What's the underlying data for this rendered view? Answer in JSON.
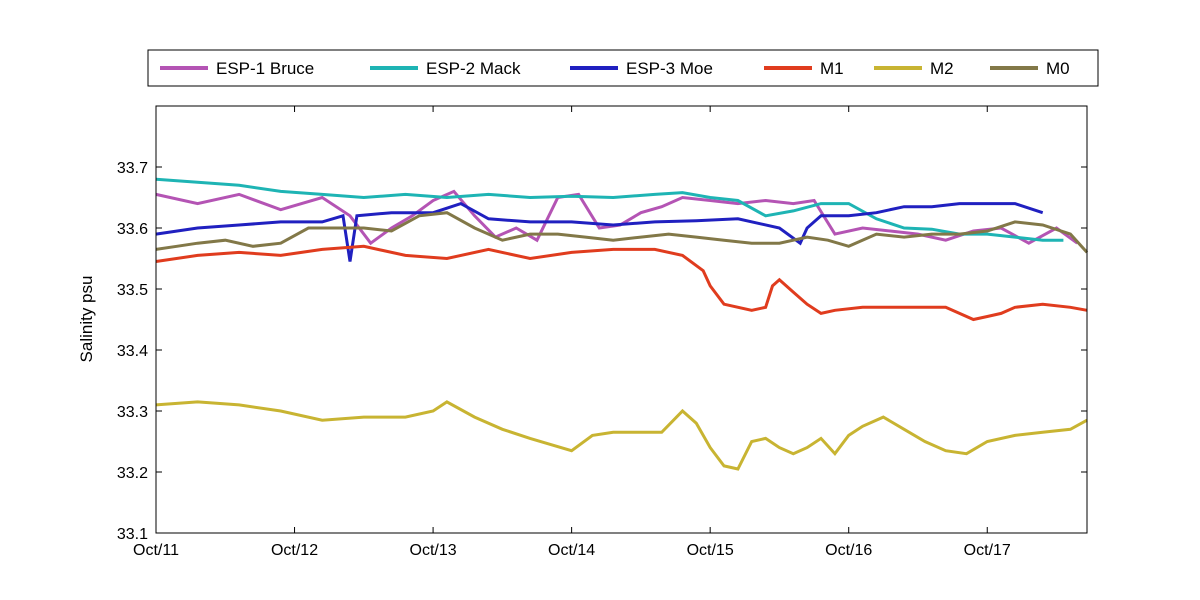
{
  "chart_data": {
    "type": "line",
    "title": "",
    "xlabel": "",
    "ylabel": "Salinity psu",
    "x_tick_labels": [
      "Oct/11",
      "Oct/12",
      "Oct/13",
      "Oct/14",
      "Oct/15",
      "Oct/16",
      "Oct/17"
    ],
    "xlim": [
      11.0,
      17.72
    ],
    "ylim": [
      33.1,
      33.8
    ],
    "y_ticks": [
      "33.1",
      "33.2",
      "33.3",
      "33.4",
      "33.5",
      "33.6",
      "33.7"
    ],
    "grid": false,
    "legend_position": "top",
    "series": [
      {
        "name": "ESP-1 Bruce",
        "color": "#b454b4",
        "x": [
          11.0,
          11.3,
          11.6,
          11.9,
          12.2,
          12.4,
          12.55,
          12.7,
          12.85,
          13.0,
          13.15,
          13.3,
          13.45,
          13.6,
          13.75,
          13.9,
          14.05,
          14.2,
          14.35,
          14.5,
          14.65,
          14.8,
          15.0,
          15.2,
          15.4,
          15.6,
          15.75,
          15.9,
          16.1,
          16.3,
          16.5,
          16.7,
          16.9,
          17.1,
          17.3,
          17.5,
          17.65
        ],
        "y": [
          33.655,
          33.64,
          33.655,
          33.63,
          33.65,
          33.62,
          33.575,
          33.6,
          33.62,
          33.645,
          33.66,
          33.62,
          33.585,
          33.6,
          33.58,
          33.65,
          33.655,
          33.6,
          33.605,
          33.625,
          33.635,
          33.65,
          33.645,
          33.64,
          33.645,
          33.64,
          33.645,
          33.59,
          33.6,
          33.595,
          33.59,
          33.58,
          33.595,
          33.6,
          33.575,
          33.6,
          33.575
        ]
      },
      {
        "name": "ESP-2 Mack",
        "color": "#1eb4b4",
        "x": [
          11.0,
          11.3,
          11.6,
          11.9,
          12.2,
          12.5,
          12.8,
          13.1,
          13.4,
          13.7,
          14.0,
          14.3,
          14.6,
          14.8,
          15.0,
          15.2,
          15.4,
          15.6,
          15.8,
          16.0,
          16.2,
          16.4,
          16.6,
          16.8,
          17.0,
          17.2,
          17.4,
          17.55
        ],
        "y": [
          33.68,
          33.675,
          33.67,
          33.66,
          33.655,
          33.65,
          33.655,
          33.65,
          33.655,
          33.65,
          33.652,
          33.65,
          33.655,
          33.658,
          33.65,
          33.645,
          33.62,
          33.628,
          33.64,
          33.64,
          33.615,
          33.6,
          33.598,
          33.59,
          33.59,
          33.585,
          33.58,
          33.58
        ]
      },
      {
        "name": "ESP-3 Moe",
        "color": "#2020c0",
        "x": [
          11.0,
          11.3,
          11.6,
          11.9,
          12.2,
          12.35,
          12.4,
          12.45,
          12.7,
          13.0,
          13.2,
          13.4,
          13.7,
          14.0,
          14.3,
          14.6,
          14.9,
          15.2,
          15.5,
          15.65,
          15.7,
          15.8,
          16.0,
          16.2,
          16.4,
          16.6,
          16.8,
          17.0,
          17.2,
          17.4
        ],
        "y": [
          33.59,
          33.6,
          33.605,
          33.61,
          33.61,
          33.62,
          33.545,
          33.62,
          33.625,
          33.625,
          33.64,
          33.615,
          33.61,
          33.61,
          33.605,
          33.61,
          33.612,
          33.615,
          33.6,
          33.575,
          33.6,
          33.62,
          33.62,
          33.625,
          33.635,
          33.635,
          33.64,
          33.64,
          33.64,
          33.625
        ]
      },
      {
        "name": "M1",
        "color": "#e03c1e",
        "x": [
          11.0,
          11.3,
          11.6,
          11.9,
          12.2,
          12.5,
          12.8,
          13.1,
          13.4,
          13.7,
          14.0,
          14.3,
          14.6,
          14.8,
          14.95,
          15.0,
          15.1,
          15.3,
          15.4,
          15.45,
          15.5,
          15.6,
          15.7,
          15.8,
          15.9,
          16.1,
          16.3,
          16.5,
          16.7,
          16.9,
          17.0,
          17.1,
          17.2,
          17.4,
          17.6,
          17.72
        ],
        "y": [
          33.545,
          33.555,
          33.56,
          33.555,
          33.565,
          33.57,
          33.555,
          33.55,
          33.565,
          33.55,
          33.56,
          33.565,
          33.565,
          33.555,
          33.53,
          33.505,
          33.475,
          33.465,
          33.47,
          33.505,
          33.515,
          33.495,
          33.475,
          33.46,
          33.465,
          33.47,
          33.47,
          33.47,
          33.47,
          33.45,
          33.455,
          33.46,
          33.47,
          33.475,
          33.47,
          33.465
        ]
      },
      {
        "name": "M2",
        "color": "#c8b432",
        "x": [
          11.0,
          11.3,
          11.6,
          11.9,
          12.2,
          12.5,
          12.8,
          13.0,
          13.1,
          13.3,
          13.5,
          13.7,
          13.85,
          14.0,
          14.15,
          14.3,
          14.5,
          14.65,
          14.8,
          14.9,
          15.0,
          15.1,
          15.2,
          15.3,
          15.4,
          15.5,
          15.6,
          15.7,
          15.8,
          15.9,
          16.0,
          16.1,
          16.25,
          16.4,
          16.55,
          16.7,
          16.85,
          17.0,
          17.2,
          17.4,
          17.6,
          17.72
        ],
        "y": [
          33.31,
          33.315,
          33.31,
          33.3,
          33.285,
          33.29,
          33.29,
          33.3,
          33.315,
          33.29,
          33.27,
          33.255,
          33.245,
          33.235,
          33.26,
          33.265,
          33.265,
          33.265,
          33.3,
          33.28,
          33.24,
          33.21,
          33.205,
          33.25,
          33.255,
          33.24,
          33.23,
          33.24,
          33.255,
          33.23,
          33.26,
          33.275,
          33.29,
          33.27,
          33.25,
          33.235,
          33.23,
          33.25,
          33.26,
          33.265,
          33.27,
          33.285
        ]
      },
      {
        "name": "M0",
        "color": "#827848",
        "x": [
          11.0,
          11.15,
          11.3,
          11.5,
          11.7,
          11.9,
          12.1,
          12.3,
          12.5,
          12.7,
          12.9,
          13.1,
          13.3,
          13.5,
          13.7,
          13.9,
          14.1,
          14.3,
          14.5,
          14.7,
          14.9,
          15.1,
          15.3,
          15.5,
          15.7,
          15.85,
          16.0,
          16.2,
          16.4,
          16.6,
          16.8,
          17.0,
          17.2,
          17.4,
          17.6,
          17.72
        ],
        "y": [
          33.565,
          33.57,
          33.575,
          33.58,
          33.57,
          33.575,
          33.6,
          33.6,
          33.6,
          33.595,
          33.62,
          33.625,
          33.6,
          33.58,
          33.59,
          33.59,
          33.585,
          33.58,
          33.585,
          33.59,
          33.585,
          33.58,
          33.575,
          33.575,
          33.585,
          33.58,
          33.57,
          33.59,
          33.585,
          33.59,
          33.59,
          33.595,
          33.61,
          33.605,
          33.59,
          33.56
        ]
      }
    ]
  }
}
